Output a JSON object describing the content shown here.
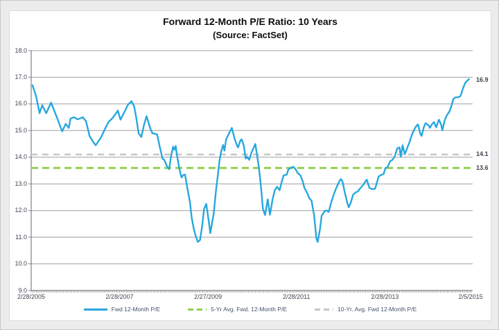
{
  "chart_data": {
    "type": "line",
    "title": "Forward 12-Month P/E Ratio: 10 Years",
    "subtitle": "(Source: FactSet)",
    "x_range": [
      2005.16,
      2015.145
    ],
    "y_range": [
      9.0,
      18.0
    ],
    "grid": true,
    "legend_position": "bottom",
    "y_tick_values": [
      9,
      10,
      11,
      12,
      13,
      14,
      15,
      16,
      17,
      18
    ],
    "y_tick_labels": [
      "9.0",
      "10.0",
      "11.0",
      "12.0",
      "13.0",
      "14.0",
      "15.0",
      "16.0",
      "17.0",
      "18.0"
    ],
    "x_ticks": [
      {
        "label": "2/28/2005",
        "x": 2005.16
      },
      {
        "label": "2/28/2007",
        "x": 2007.16
      },
      {
        "label": "2/27/2009",
        "x": 2009.16
      },
      {
        "label": "2/28/2011",
        "x": 2011.16
      },
      {
        "label": "2/28/2013",
        "x": 2013.16
      },
      {
        "label": "2/5/2015",
        "x": 2015.1
      }
    ],
    "series": [
      {
        "name": "Fwd 12-Month P/E",
        "color": "#27A7DF",
        "style": "solid",
        "x": [
          2005.19,
          2005.27,
          2005.35,
          2005.41,
          2005.5,
          2005.61,
          2005.74,
          2005.86,
          2005.94,
          2006.01,
          2006.05,
          2006.13,
          2006.21,
          2006.33,
          2006.4,
          2006.48,
          2006.57,
          2006.62,
          2006.73,
          2006.84,
          2006.91,
          2006.99,
          2007.07,
          2007.12,
          2007.18,
          2007.27,
          2007.35,
          2007.43,
          2007.49,
          2007.54,
          2007.59,
          2007.65,
          2007.71,
          2007.77,
          2007.85,
          2007.9,
          2007.96,
          2008.01,
          2008.06,
          2008.13,
          2008.17,
          2008.24,
          2008.28,
          2008.32,
          2008.37,
          2008.4,
          2008.43,
          2008.46,
          2008.51,
          2008.56,
          2008.6,
          2008.64,
          2008.68,
          2008.75,
          2008.79,
          2008.84,
          2008.89,
          2008.93,
          2008.98,
          2009.03,
          2009.07,
          2009.12,
          2009.18,
          2009.21,
          2009.29,
          2009.34,
          2009.39,
          2009.42,
          2009.46,
          2009.5,
          2009.53,
          2009.57,
          2009.62,
          2009.7,
          2009.76,
          2009.81,
          2009.84,
          2009.89,
          2009.92,
          2009.97,
          2010.01,
          2010.04,
          2010.09,
          2010.15,
          2010.23,
          2010.31,
          2010.36,
          2010.4,
          2010.45,
          2010.51,
          2010.56,
          2010.62,
          2010.67,
          2010.72,
          2010.78,
          2010.83,
          2010.87,
          2010.94,
          2010.98,
          2011.05,
          2011.09,
          2011.14,
          2011.19,
          2011.25,
          2011.3,
          2011.34,
          2011.41,
          2011.45,
          2011.5,
          2011.56,
          2011.61,
          2011.64,
          2011.69,
          2011.73,
          2011.8,
          2011.84,
          2011.89,
          2011.95,
          2012.0,
          2012.05,
          2012.11,
          2012.16,
          2012.2,
          2012.25,
          2012.3,
          2012.34,
          2012.39,
          2012.44,
          2012.5,
          2012.55,
          2012.59,
          2012.66,
          2012.71,
          2012.75,
          2012.81,
          2012.88,
          2012.94,
          2013.02,
          2013.06,
          2013.13,
          2013.17,
          2013.22,
          2013.28,
          2013.33,
          2013.38,
          2013.44,
          2013.49,
          2013.52,
          2013.56,
          2013.61,
          2013.68,
          2013.72,
          2013.77,
          2013.83,
          2013.88,
          2013.91,
          2013.96,
          2013.99,
          2014.04,
          2014.08,
          2014.15,
          2014.18,
          2014.22,
          2014.27,
          2014.32,
          2014.38,
          2014.43,
          2014.46,
          2014.51,
          2014.55,
          2014.62,
          2014.66,
          2014.71,
          2014.76,
          2014.82,
          2014.87,
          2014.93,
          2014.98,
          2015.06
        ],
        "values": [
          16.7,
          16.3,
          15.65,
          15.95,
          15.65,
          16.05,
          15.5,
          14.97,
          15.25,
          15.1,
          15.45,
          15.5,
          15.42,
          15.5,
          15.35,
          14.8,
          14.55,
          14.45,
          14.72,
          15.1,
          15.32,
          15.45,
          15.62,
          15.75,
          15.41,
          15.7,
          15.97,
          16.1,
          15.9,
          15.45,
          14.9,
          14.76,
          15.2,
          15.54,
          15.1,
          14.9,
          14.88,
          14.85,
          14.45,
          13.95,
          13.9,
          13.63,
          13.55,
          14.0,
          14.4,
          14.28,
          14.42,
          14.05,
          13.58,
          13.24,
          13.33,
          13.35,
          12.94,
          12.33,
          11.73,
          11.29,
          11.0,
          10.82,
          10.9,
          11.46,
          12.06,
          12.25,
          11.55,
          11.15,
          11.9,
          12.77,
          13.45,
          13.89,
          14.23,
          14.46,
          14.25,
          14.67,
          14.85,
          15.1,
          14.7,
          14.46,
          14.37,
          14.63,
          14.67,
          14.43,
          13.95,
          14.02,
          13.9,
          14.2,
          14.5,
          13.63,
          12.85,
          12.07,
          11.83,
          12.42,
          11.84,
          12.42,
          12.76,
          12.89,
          12.76,
          13.1,
          13.32,
          13.35,
          13.55,
          13.62,
          13.64,
          13.55,
          13.4,
          13.32,
          13.1,
          12.85,
          12.63,
          12.46,
          12.37,
          11.81,
          10.95,
          10.82,
          11.28,
          11.81,
          11.98,
          12.0,
          11.95,
          12.33,
          12.59,
          12.81,
          13.03,
          13.18,
          13.1,
          12.7,
          12.35,
          12.12,
          12.3,
          12.59,
          12.68,
          12.72,
          12.81,
          12.94,
          13.07,
          13.16,
          12.85,
          12.8,
          12.82,
          13.28,
          13.32,
          13.37,
          13.59,
          13.63,
          13.85,
          13.9,
          14.02,
          14.33,
          14.37,
          14.02,
          14.45,
          14.11,
          14.41,
          14.58,
          14.84,
          15.06,
          15.19,
          15.23,
          14.88,
          14.8,
          15.12,
          15.28,
          15.19,
          15.1,
          15.23,
          15.32,
          15.12,
          15.41,
          15.23,
          15.01,
          15.37,
          15.54,
          15.72,
          15.9,
          16.19,
          16.25,
          16.25,
          16.3,
          16.6,
          16.8,
          16.93
        ]
      },
      {
        "name": "5-Yr Avg. Fwd. 12-Month P/E",
        "color": "#92D050",
        "style": "dashed",
        "constant": 13.6
      },
      {
        "name": "10-Yr. Avg. Fwd 12-Month P/E",
        "color": "#C6C6C6",
        "style": "dashed",
        "constant": 14.1
      }
    ],
    "annotations": [
      {
        "text": "16.9",
        "v": 16.9
      },
      {
        "text": "14.1",
        "v": 14.1
      },
      {
        "text": "13.6",
        "v": 13.6
      }
    ]
  },
  "colors": {
    "grid": "#9E9E9E",
    "axis": "#7F7F7F",
    "minor_tick": "#8C8C8C",
    "label_text": "#3f4550"
  }
}
